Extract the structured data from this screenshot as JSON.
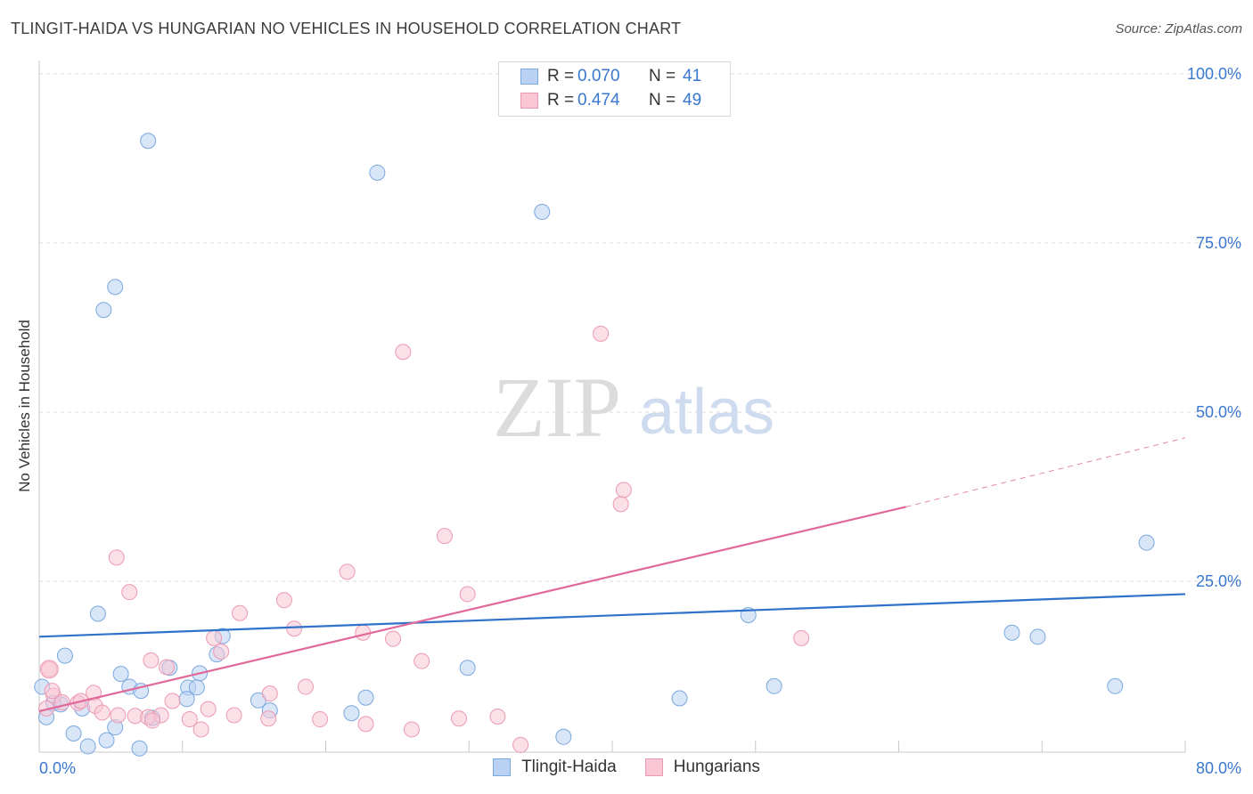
{
  "title": "TLINGIT-HAIDA VS HUNGARIAN NO VEHICLES IN HOUSEHOLD CORRELATION CHART",
  "source": "Source: ZipAtlas.com",
  "watermark": {
    "zip": "ZIP",
    "atlas": "atlas"
  },
  "legend": {
    "r_label": "R =",
    "n_label": "N =",
    "rows": [
      {
        "name": "Tlingit-Haida",
        "r": "0.070",
        "n": "41"
      },
      {
        "name": "Hungarians",
        "r": "0.474",
        "n": "49"
      }
    ]
  },
  "colors": {
    "blue_fill": "#b9d2f3",
    "blue_stroke": "#7aa8df",
    "blue_line": "#2f72c9",
    "pink_fill": "#f8c6d5",
    "pink_stroke": "#ec9ab3",
    "pink_line": "#e0699a",
    "tick_text": "#3a78d0",
    "grid": "#d9d9d9"
  },
  "chart_data": {
    "type": "scatter",
    "title": "TLINGIT-HAIDA VS HUNGARIAN NO VEHICLES IN HOUSEHOLD CORRELATION CHART",
    "xlabel": "",
    "ylabel": "No Vehicles in Household",
    "xlim": [
      0,
      80
    ],
    "ylim": [
      0,
      100
    ],
    "x_tick_labels": [
      "0.0%",
      "80.0%"
    ],
    "y_ticks": [
      25,
      50,
      75,
      100
    ],
    "y_tick_labels": [
      "25.0%",
      "50.0%",
      "75.0%",
      "100.0%"
    ],
    "series": [
      {
        "name": "Tlingit-Haida",
        "r": 0.07,
        "n": 41,
        "trend": {
          "x": [
            0,
            80
          ],
          "y": [
            16.8,
            23.1
          ]
        },
        "points": [
          [
            7.6,
            90.1
          ],
          [
            23.6,
            85.4
          ],
          [
            35.1,
            79.6
          ],
          [
            5.3,
            68.5
          ],
          [
            4.5,
            65.1
          ],
          [
            77.3,
            30.7
          ],
          [
            4.1,
            20.2
          ],
          [
            49.5,
            20.0
          ],
          [
            67.9,
            17.4
          ],
          [
            69.7,
            16.8
          ],
          [
            12.8,
            16.9
          ],
          [
            12.4,
            14.2
          ],
          [
            1.8,
            14.0
          ],
          [
            9.1,
            12.2
          ],
          [
            29.9,
            12.2
          ],
          [
            5.7,
            11.3
          ],
          [
            11.2,
            11.4
          ],
          [
            0.2,
            9.4
          ],
          [
            6.3,
            9.4
          ],
          [
            7.1,
            8.8
          ],
          [
            10.4,
            9.3
          ],
          [
            11.0,
            9.3
          ],
          [
            51.3,
            9.5
          ],
          [
            75.1,
            9.5
          ],
          [
            22.8,
            7.8
          ],
          [
            44.7,
            7.7
          ],
          [
            10.3,
            7.6
          ],
          [
            15.3,
            7.4
          ],
          [
            1.0,
            7.0
          ],
          [
            1.5,
            6.8
          ],
          [
            3.0,
            6.2
          ],
          [
            16.1,
            5.9
          ],
          [
            0.5,
            4.9
          ],
          [
            7.9,
            4.8
          ],
          [
            21.8,
            5.5
          ],
          [
            5.3,
            3.4
          ],
          [
            36.6,
            2.0
          ],
          [
            2.4,
            2.5
          ],
          [
            4.7,
            1.5
          ],
          [
            3.4,
            0.6
          ],
          [
            7.0,
            0.3
          ]
        ]
      },
      {
        "name": "Hungarians",
        "r": 0.474,
        "n": 49,
        "trend": {
          "x": [
            0,
            60.5
          ],
          "y": [
            5.8,
            36.0
          ]
        },
        "trend_dashed": {
          "x": [
            60.5,
            80
          ],
          "y": [
            36.0,
            46.2
          ]
        },
        "points": [
          [
            39.2,
            61.6
          ],
          [
            25.4,
            58.9
          ],
          [
            40.8,
            38.5
          ],
          [
            40.6,
            36.4
          ],
          [
            28.3,
            31.7
          ],
          [
            5.4,
            28.5
          ],
          [
            21.5,
            26.4
          ],
          [
            6.3,
            23.4
          ],
          [
            29.9,
            23.1
          ],
          [
            17.1,
            22.2
          ],
          [
            14.0,
            20.3
          ],
          [
            17.8,
            18.0
          ],
          [
            22.6,
            17.4
          ],
          [
            53.2,
            16.6
          ],
          [
            24.7,
            16.5
          ],
          [
            12.2,
            16.6
          ],
          [
            12.7,
            14.6
          ],
          [
            7.8,
            13.3
          ],
          [
            26.7,
            13.2
          ],
          [
            8.9,
            12.3
          ],
          [
            0.7,
            12.0
          ],
          [
            18.6,
            9.4
          ],
          [
            16.1,
            8.4
          ],
          [
            3.8,
            8.5
          ],
          [
            1.0,
            8.1
          ],
          [
            0.9,
            8.8
          ],
          [
            9.3,
            7.3
          ],
          [
            2.7,
            7.0
          ],
          [
            2.9,
            7.3
          ],
          [
            1.6,
            7.1
          ],
          [
            3.9,
            6.6
          ],
          [
            0.5,
            6.2
          ],
          [
            11.8,
            6.1
          ],
          [
            4.4,
            5.6
          ],
          [
            5.5,
            5.2
          ],
          [
            8.5,
            5.2
          ],
          [
            13.6,
            5.2
          ],
          [
            6.7,
            5.1
          ],
          [
            7.6,
            4.9
          ],
          [
            16.0,
            4.7
          ],
          [
            7.9,
            4.4
          ],
          [
            10.5,
            4.6
          ],
          [
            19.6,
            4.6
          ],
          [
            29.3,
            4.7
          ],
          [
            32.0,
            5.0
          ],
          [
            22.8,
            3.9
          ],
          [
            11.3,
            3.1
          ],
          [
            26.0,
            3.1
          ],
          [
            33.6,
            0.8
          ]
        ]
      }
    ]
  }
}
